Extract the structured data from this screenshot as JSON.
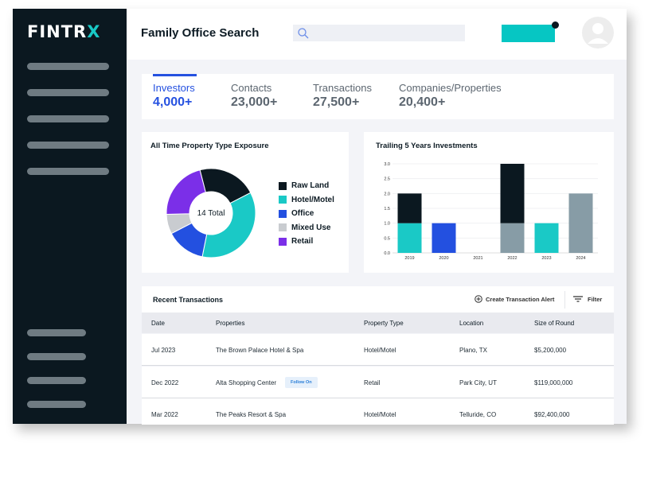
{
  "brand": {
    "logo_text": "FINTR",
    "logo_accent": "X"
  },
  "header": {
    "title": "Family Office Search",
    "search_placeholder": ""
  },
  "stats": [
    {
      "label": "Investors",
      "value": "4,000+",
      "active": true
    },
    {
      "label": "Contacts",
      "value": "23,000+"
    },
    {
      "label": "Transactions",
      "value": "27,500+"
    },
    {
      "label": "Companies/Properties",
      "value": "20,400+"
    }
  ],
  "colors": {
    "raw_land": "#0b1820",
    "hotel_motel": "#1ac9c6",
    "office": "#2350e0",
    "mixed_use": "#c9ccd0",
    "retail": "#7b2fe8",
    "gray_bar": "#879ca6",
    "accent": "#2551e0"
  },
  "chart_data": [
    {
      "type": "pie",
      "title": "All Time Property Type Exposure",
      "center_label": "14 Total",
      "categories": [
        "Raw Land",
        "Hotel/Motel",
        "Office",
        "Mixed Use",
        "Retail"
      ],
      "values": [
        3,
        5,
        2,
        1,
        3
      ],
      "colors": [
        "#0b1820",
        "#1ac9c6",
        "#2350e0",
        "#c9ccd0",
        "#7b2fe8"
      ],
      "legend": "right"
    },
    {
      "type": "bar",
      "title": "Trailing 5 Years Investments",
      "stacked": true,
      "categories": [
        "2019",
        "2020",
        "2021",
        "2022",
        "2023",
        "2024"
      ],
      "ylim": [
        0,
        3
      ],
      "yticks": [
        "0.0",
        "0.5",
        "1.0",
        "1.5",
        "2.0",
        "2.5",
        "3.0"
      ],
      "grid": true,
      "series": [
        {
          "color": "#1ac9c6",
          "values": [
            1,
            0,
            0,
            0,
            1,
            0
          ]
        },
        {
          "color": "#2350e0",
          "values": [
            0,
            1,
            0,
            0,
            0,
            0
          ]
        },
        {
          "color": "#879ca6",
          "values": [
            0,
            0,
            0,
            1,
            0,
            2
          ]
        },
        {
          "color": "#0b1820",
          "values": [
            1,
            0,
            0,
            2,
            0,
            0
          ]
        }
      ]
    }
  ],
  "transactions": {
    "title": "Recent Transactions",
    "alert_label": "Create Transaction Alert",
    "filter_label": "Filter",
    "columns": [
      "Date",
      "Properties",
      "Property Type",
      "Location",
      "Size of Round"
    ],
    "rows": [
      {
        "date": "Jul 2023",
        "property": "The Brown Palace Hotel & Spa",
        "badge": "",
        "type": "Hotel/Motel",
        "location": "Plano, TX",
        "size": "$5,200,000"
      },
      {
        "date": "Dec 2022",
        "property": "Alta Shopping Center",
        "badge": "Follow On",
        "type": "Retail",
        "location": "Park City, UT",
        "size": "$119,000,000"
      },
      {
        "date": "Mar 2022",
        "property": "The Peaks Resort & Spa",
        "badge": "",
        "type": "Hotel/Motel",
        "location": "Telluride, CO",
        "size": "$92,400,000"
      }
    ]
  }
}
